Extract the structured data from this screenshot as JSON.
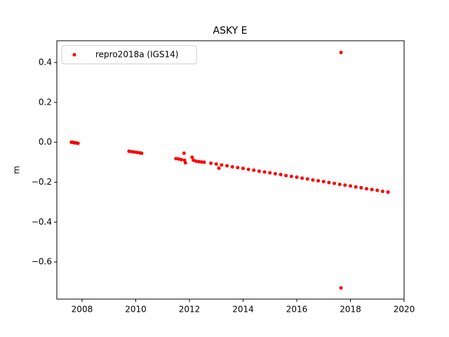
{
  "chart_data": {
    "type": "scatter",
    "title": "ASKY E",
    "y_label": "m",
    "series": [
      {
        "name": "repro2018a (IGS14)",
        "color": "#ff0000",
        "x": [
          2007.6,
          2007.65,
          2007.7,
          2007.75,
          2007.8,
          2007.85,
          2009.75,
          2009.85,
          2009.95,
          2010.05,
          2010.15,
          2010.22,
          2011.5,
          2011.6,
          2011.7,
          2011.8,
          2011.82,
          2011.85,
          2012.1,
          2012.15,
          2012.25,
          2012.35,
          2012.45,
          2012.55,
          2012.8,
          2013.0,
          2013.2,
          2013.4,
          2013.6,
          2013.8,
          2014.0,
          2014.2,
          2014.4,
          2014.6,
          2014.8,
          2015.0,
          2015.2,
          2015.4,
          2015.6,
          2015.8,
          2016.0,
          2016.2,
          2016.4,
          2016.6,
          2016.8,
          2017.0,
          2017.2,
          2017.4,
          2017.6,
          2017.8,
          2018.0,
          2018.2,
          2018.4,
          2018.6,
          2018.8,
          2019.0,
          2019.2,
          2019.4,
          2013.1,
          2017.65,
          2017.65
        ],
        "y": [
          0.0,
          0.0,
          -0.002,
          -0.003,
          -0.004,
          -0.005,
          -0.045,
          -0.047,
          -0.049,
          -0.051,
          -0.053,
          -0.055,
          -0.082,
          -0.084,
          -0.087,
          -0.055,
          -0.09,
          -0.103,
          -0.075,
          -0.09,
          -0.095,
          -0.097,
          -0.099,
          -0.1,
          -0.105,
          -0.109,
          -0.114,
          -0.118,
          -0.123,
          -0.127,
          -0.131,
          -0.136,
          -0.14,
          -0.145,
          -0.149,
          -0.153,
          -0.158,
          -0.162,
          -0.167,
          -0.171,
          -0.175,
          -0.18,
          -0.184,
          -0.189,
          -0.193,
          -0.197,
          -0.202,
          -0.206,
          -0.211,
          -0.215,
          -0.219,
          -0.224,
          -0.228,
          -0.233,
          -0.237,
          -0.241,
          -0.246,
          -0.25,
          -0.13,
          0.45,
          -0.73
        ]
      }
    ],
    "xlim": [
      2007.06,
      2020.0
    ],
    "ylim": [
      -0.786,
      0.509
    ],
    "xticks": [
      2008,
      2010,
      2012,
      2014,
      2016,
      2018,
      2020
    ],
    "yticks": [
      0.4,
      0.2,
      {
        "value": 0,
        "label": "0.0"
      },
      {
        "value": -0.2,
        "label": "−0.2"
      },
      {
        "value": -0.4,
        "label": "−0.4"
      },
      {
        "value": -0.6,
        "label": "−0.6"
      }
    ],
    "legend": "upper left",
    "grid": false
  }
}
